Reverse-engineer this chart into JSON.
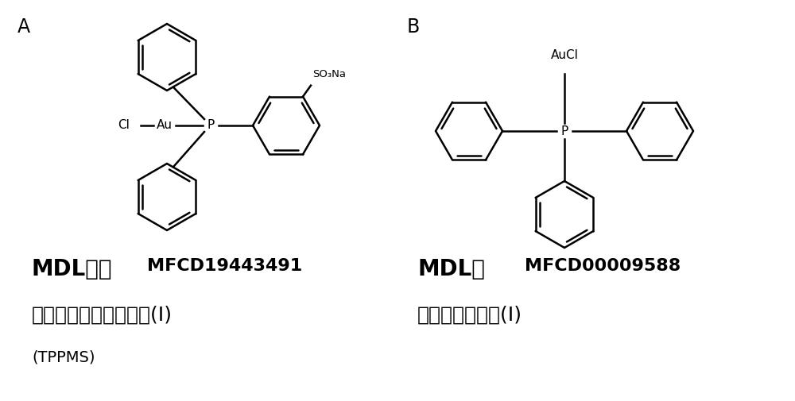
{
  "bg_color": "#ffffff",
  "panel_A_label": "A",
  "panel_B_label": "B",
  "mdl_label_A": "MDL号：",
  "mdl_code_A": "MFCD19443491",
  "mdl_label_B": "MDL号",
  "mdl_code_B": "MFCD00009588",
  "name_A_line1": "单磺化三苯基膋氯化金(I)",
  "name_A_line2": "(TPPMS)",
  "name_B": "三苯基膋氯化金(I)",
  "so3na": "SO₃Na"
}
